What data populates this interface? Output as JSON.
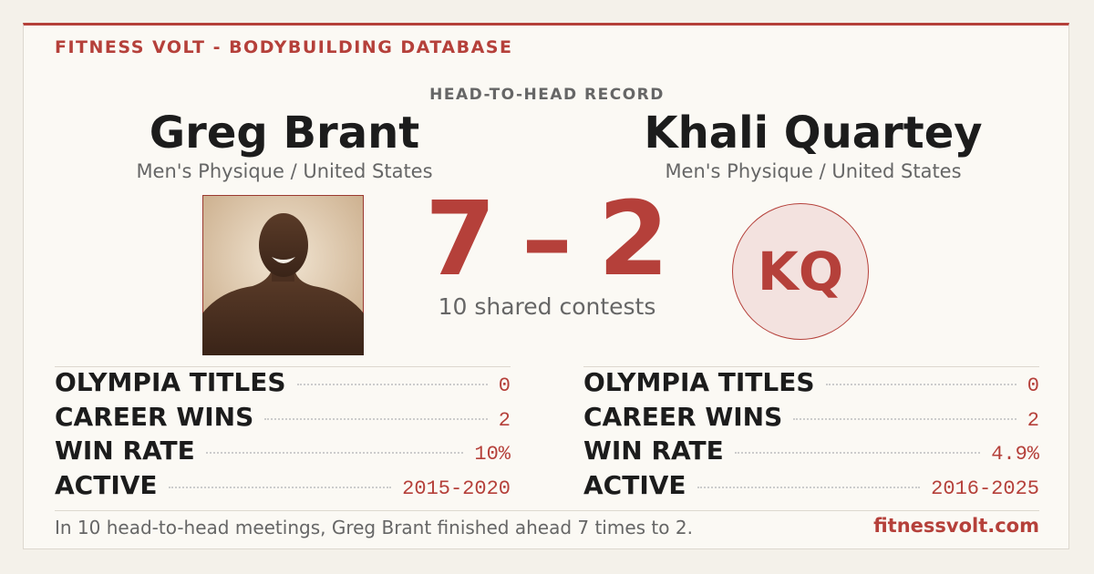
{
  "header": {
    "brand": "FITNESS VOLT - BODYBUILDING DATABASE",
    "kicker": "HEAD-TO-HEAD RECORD"
  },
  "athletes": [
    {
      "name": "Greg Brant",
      "division": "Men's Physique / United States",
      "stats": [
        {
          "label": "OLYMPIA TITLES",
          "value": "0"
        },
        {
          "label": "CAREER WINS",
          "value": "2"
        },
        {
          "label": "WIN RATE",
          "value": "10%"
        },
        {
          "label": "ACTIVE",
          "value": "2015-2020"
        }
      ]
    },
    {
      "name": "Khali Quartey",
      "division": "Men's Physique / United States",
      "initials": "KQ",
      "stats": [
        {
          "label": "OLYMPIA TITLES",
          "value": "0"
        },
        {
          "label": "CAREER WINS",
          "value": "2"
        },
        {
          "label": "WIN RATE",
          "value": "4.9%"
        },
        {
          "label": "ACTIVE",
          "value": "2016-2025"
        }
      ]
    }
  ],
  "score": {
    "left": 7,
    "separator": "–",
    "right": 2,
    "note": "10 shared contests"
  },
  "footer": {
    "summary": "In 10 head-to-head meetings, Greg Brant finished ahead 7 times to 2.",
    "site": "fitnessvolt.com"
  }
}
